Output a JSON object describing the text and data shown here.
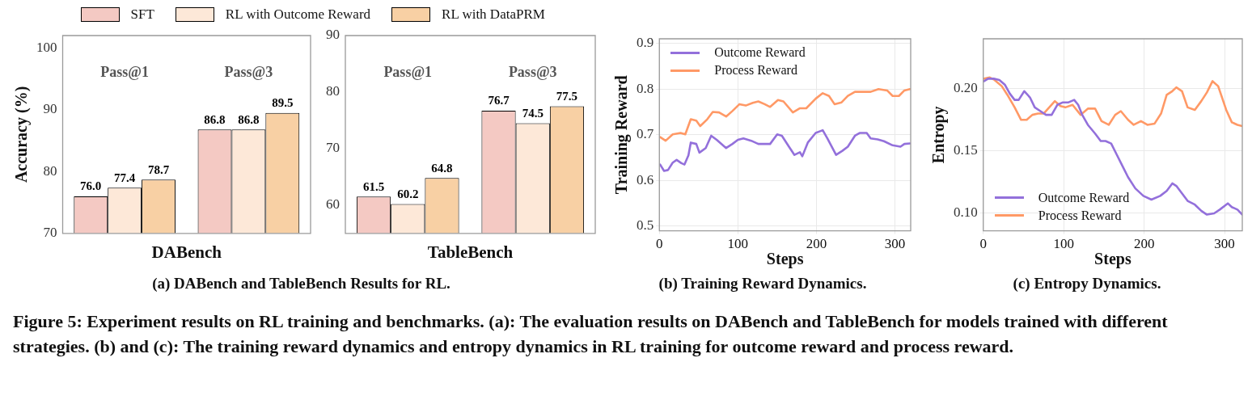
{
  "chart_data": [
    {
      "type": "bar",
      "xlabel": "DABench",
      "ylabel": "Accuracy (%)",
      "categories": [
        "Pass@1",
        "Pass@3"
      ],
      "ylim": [
        70,
        102
      ],
      "yticks": [
        70,
        80,
        90,
        100
      ],
      "grid": false,
      "legend": "top",
      "series": [
        {
          "name": "SFT",
          "color": "#f4c9c3",
          "values": [
            76.0,
            86.8
          ],
          "value_labels": [
            "76.0",
            "86.8"
          ]
        },
        {
          "name": "RL with Outcome Reward",
          "color": "#fde8d8",
          "values": [
            77.4,
            86.8
          ],
          "value_labels": [
            "77.4",
            "86.8"
          ]
        },
        {
          "name": "RL with DataPRM",
          "color": "#f8d0a4",
          "values": [
            78.7,
            89.5
          ],
          "value_labels": [
            "78.7",
            "89.5"
          ]
        }
      ],
      "annotations": [
        "(a) DABench and TableBench Results for RL.",
        "Figure 5: Experiment results on RL training and benchmarks. (a): The evaluation results on DABench and TableBench for models trained with different strategies. (b) and (c): The training reward dynamics and entropy dynamics in RL training for outcome reward and process reward."
      ]
    },
    {
      "type": "bar",
      "xlabel": "TableBench",
      "categories": [
        "Pass@1",
        "Pass@3"
      ],
      "ylim": [
        55,
        90
      ],
      "yticks": [
        60,
        70,
        80,
        90
      ],
      "grid": false,
      "series": [
        {
          "color": "#f4c9c3",
          "values": [
            61.5,
            76.7
          ],
          "value_labels": [
            "61.5",
            "76.7"
          ]
        },
        {
          "color": "#fde8d8",
          "values": [
            60.2,
            74.5
          ],
          "value_labels": [
            "60.2",
            "74.5"
          ]
        },
        {
          "color": "#f8d0a4",
          "values": [
            64.8,
            77.5
          ],
          "value_labels": [
            "64.8",
            "77.5"
          ]
        }
      ]
    },
    {
      "type": "line",
      "xlabel": "Steps",
      "ylabel": "Training Reward",
      "xlim": [
        0,
        320
      ],
      "xticks": [
        0,
        100,
        200,
        300
      ],
      "ylim": [
        0.49,
        0.91
      ],
      "yticks": [
        0.5,
        0.6,
        0.7,
        0.8,
        0.9
      ],
      "grid": true,
      "legend": "top left",
      "marker": "none",
      "line_style": "solid",
      "series": [
        {
          "name": "Outcome Reward",
          "color": "#9370db",
          "x": [
            1,
            6,
            11,
            17,
            22,
            28,
            32,
            37,
            40,
            47,
            51,
            59,
            66,
            73,
            85,
            93,
            100,
            107,
            117,
            126,
            134,
            141,
            150,
            156,
            165,
            172,
            179,
            182,
            189,
            199,
            208,
            214,
            225,
            233,
            240,
            249,
            255,
            264,
            269,
            278,
            286,
            297,
            307,
            312,
            319
          ],
          "values": [
            0.635,
            0.621,
            0.623,
            0.639,
            0.645,
            0.638,
            0.635,
            0.655,
            0.683,
            0.68,
            0.661,
            0.671,
            0.698,
            0.689,
            0.671,
            0.68,
            0.689,
            0.692,
            0.687,
            0.68,
            0.68,
            0.68,
            0.701,
            0.698,
            0.674,
            0.656,
            0.662,
            0.653,
            0.683,
            0.704,
            0.71,
            0.692,
            0.656,
            0.665,
            0.674,
            0.698,
            0.704,
            0.704,
            0.692,
            0.69,
            0.686,
            0.677,
            0.674,
            0.68,
            0.681
          ]
        },
        {
          "name": "Process Reward",
          "color": "#ff9966",
          "x": [
            1,
            8,
            17,
            27,
            33,
            40,
            47,
            52,
            61,
            68,
            76,
            85,
            93,
            102,
            110,
            119,
            126,
            134,
            141,
            151,
            158,
            170,
            179,
            187,
            199,
            208,
            216,
            223,
            232,
            240,
            249,
            259,
            269,
            279,
            290,
            297,
            305,
            312,
            319
          ],
          "values": [
            0.695,
            0.687,
            0.701,
            0.704,
            0.701,
            0.734,
            0.731,
            0.719,
            0.734,
            0.75,
            0.749,
            0.74,
            0.752,
            0.767,
            0.764,
            0.77,
            0.773,
            0.767,
            0.761,
            0.776,
            0.773,
            0.749,
            0.758,
            0.758,
            0.779,
            0.791,
            0.785,
            0.767,
            0.771,
            0.785,
            0.794,
            0.794,
            0.794,
            0.8,
            0.797,
            0.785,
            0.785,
            0.797,
            0.8
          ]
        }
      ],
      "annotations": [
        "(b) Training Reward Dynamics."
      ]
    },
    {
      "type": "line",
      "xlabel": "Steps",
      "ylabel": "Entropy",
      "xlim": [
        0,
        322
      ],
      "xticks": [
        0,
        100,
        200,
        300
      ],
      "ylim": [
        0.086,
        0.24
      ],
      "yticks": [
        {
          "value": 0.1,
          "label": "0.10"
        },
        {
          "value": 0.15,
          "label": "0.15"
        },
        {
          "value": 0.2,
          "label": "0.20"
        }
      ],
      "grid": true,
      "legend": "bottom left",
      "marker": "none",
      "line_style": "solid",
      "series": [
        {
          "name": "Outcome Reward",
          "color": "#9370db",
          "x": [
            1,
            6,
            13,
            20,
            27,
            33,
            39,
            44,
            51,
            58,
            64,
            71,
            78,
            85,
            92,
            99,
            106,
            113,
            118,
            123,
            130,
            139,
            146,
            152,
            159,
            166,
            173,
            180,
            189,
            199,
            209,
            220,
            228,
            235,
            240,
            247,
            254,
            263,
            271,
            278,
            287,
            294,
            304,
            309,
            316,
            322
          ],
          "values": [
            0.206,
            0.208,
            0.208,
            0.207,
            0.203,
            0.196,
            0.191,
            0.191,
            0.198,
            0.193,
            0.185,
            0.182,
            0.179,
            0.179,
            0.187,
            0.189,
            0.189,
            0.191,
            0.187,
            0.179,
            0.171,
            0.164,
            0.158,
            0.158,
            0.156,
            0.147,
            0.138,
            0.129,
            0.12,
            0.114,
            0.111,
            0.114,
            0.118,
            0.124,
            0.122,
            0.116,
            0.11,
            0.107,
            0.102,
            0.099,
            0.1,
            0.103,
            0.108,
            0.105,
            0.103,
            0.099
          ]
        },
        {
          "name": "Process Reward",
          "color": "#ff9966",
          "x": [
            1,
            8,
            14,
            23,
            30,
            39,
            47,
            54,
            61,
            68,
            75,
            82,
            89,
            96,
            102,
            111,
            121,
            130,
            139,
            147,
            156,
            164,
            171,
            180,
            187,
            196,
            204,
            213,
            221,
            228,
            235,
            240,
            247,
            254,
            263,
            271,
            278,
            285,
            292,
            302,
            309,
            316,
            322
          ],
          "values": [
            0.208,
            0.209,
            0.207,
            0.202,
            0.195,
            0.185,
            0.175,
            0.175,
            0.179,
            0.18,
            0.18,
            0.185,
            0.19,
            0.186,
            0.185,
            0.187,
            0.179,
            0.184,
            0.184,
            0.174,
            0.171,
            0.179,
            0.182,
            0.175,
            0.171,
            0.174,
            0.171,
            0.172,
            0.18,
            0.195,
            0.198,
            0.201,
            0.198,
            0.185,
            0.183,
            0.19,
            0.197,
            0.206,
            0.202,
            0.183,
            0.173,
            0.171,
            0.17
          ]
        }
      ],
      "annotations": [
        "(c) Entropy Dynamics."
      ]
    }
  ]
}
